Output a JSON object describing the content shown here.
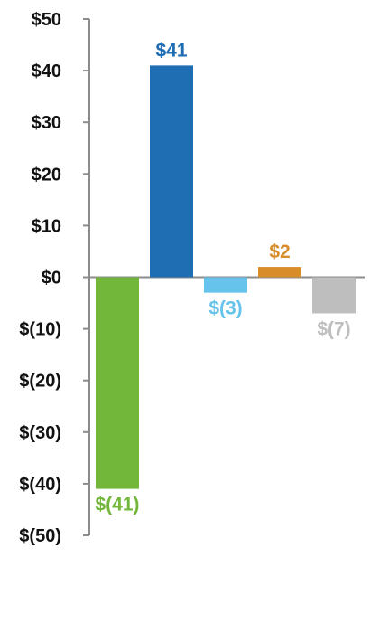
{
  "chart_data": {
    "type": "bar",
    "title": "",
    "xlabel": "",
    "ylabel": "",
    "ylim": [
      -50,
      50
    ],
    "y_ticks": [
      50,
      40,
      30,
      20,
      10,
      0,
      -10,
      -20,
      -30,
      -40,
      -50
    ],
    "y_tick_labels": [
      "$50",
      "$40",
      "$30",
      "$20",
      "$10",
      "$0",
      "$(10)",
      "$(20)",
      "$(30)",
      "$(40)",
      "$(50)"
    ],
    "grid": false,
    "legend": "none",
    "bars": [
      {
        "value": -41,
        "label": "$(41)",
        "color": "#72b73a"
      },
      {
        "value": 41,
        "label": "$41",
        "color": "#1f6db3"
      },
      {
        "value": -3,
        "label": "$(3)",
        "color": "#66c3ec"
      },
      {
        "value": 2,
        "label": "$2",
        "color": "#d98c2a"
      },
      {
        "value": -7,
        "label": "$(7)",
        "color": "#bebebe"
      }
    ],
    "colors": {
      "axis": "#8c8c8c",
      "text": "#111111"
    }
  }
}
